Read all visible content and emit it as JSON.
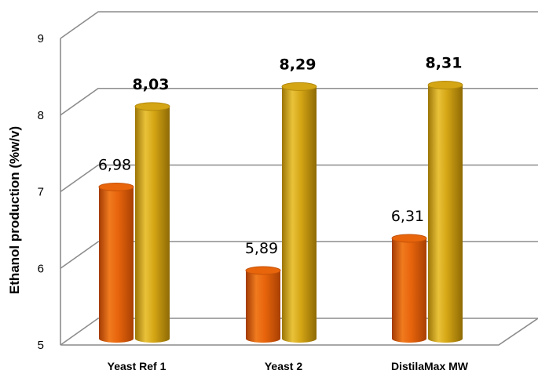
{
  "chart_data": {
    "type": "bar",
    "title": "",
    "xlabel": "",
    "ylabel": "Ethanol production (%w/v)",
    "ylim": [
      5,
      9
    ],
    "yticks": [
      "5",
      "6",
      "7",
      "8",
      "9"
    ],
    "grid": true,
    "categories": [
      "Yeast  Ref 1",
      "Yeast 2",
      "DistilaMax MW"
    ],
    "series": [
      {
        "values": [
          6.98,
          5.89,
          6.31
        ],
        "labels": [
          "6,98",
          "5,89",
          "6,31"
        ],
        "color": "#E8650C",
        "bold_labels": false
      },
      {
        "values": [
          8.03,
          8.29,
          8.31
        ],
        "labels": [
          "8,03",
          "8,29",
          "8,31"
        ],
        "color": "#D4A514",
        "bold_labels": true
      }
    ]
  }
}
